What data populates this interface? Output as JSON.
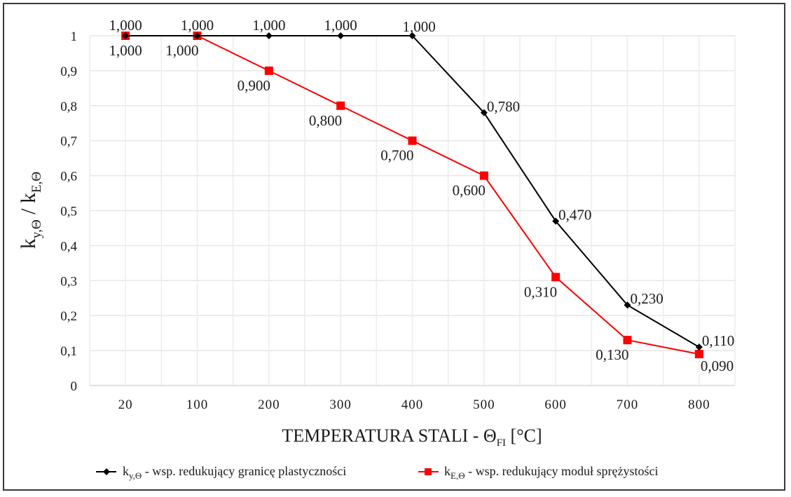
{
  "chart_data": {
    "type": "line",
    "title": "",
    "categories": [
      "20",
      "100",
      "200",
      "300",
      "400",
      "500",
      "600",
      "700",
      "800"
    ],
    "xlabel": {
      "main": "TEMPERATURA STALI - Θ",
      "sub": "FI",
      "suffix": " [°C]"
    },
    "ylabel": {
      "k1": "k",
      "sub1": "y,Θ",
      "sep": " / ",
      "k2": "k",
      "sub2": "E,Θ"
    },
    "ylim": [
      0,
      1
    ],
    "yticks": [
      0,
      0.1,
      0.2,
      0.3,
      0.4,
      0.5,
      0.6,
      0.7,
      0.8,
      0.9,
      1
    ],
    "ytick_labels": [
      "0",
      "0,1",
      "0,2",
      "0,3",
      "0,4",
      "0,5",
      "0,6",
      "0,7",
      "0,8",
      "0,9",
      "1"
    ],
    "grid": true,
    "legend_position": "bottom",
    "series": [
      {
        "name": "k_y,Θ - wsp. redukujący granicę plastyczności",
        "legend_main": "k",
        "legend_sub": "y,Θ",
        "legend_rest": " - wsp. redukujący granicę plastyczności",
        "color": "#000000",
        "marker": "diamond",
        "values": [
          1.0,
          1.0,
          1.0,
          1.0,
          1.0,
          0.78,
          0.47,
          0.23,
          0.11
        ],
        "labels": [
          "1,000",
          "1,000",
          "1,000",
          "1,000",
          "1,000",
          "0,780",
          "0,470",
          "0,230",
          "0,110"
        ],
        "label_positions": [
          "above",
          "above",
          "above",
          "above",
          "above-right",
          "right",
          "right",
          "right",
          "right"
        ]
      },
      {
        "name": "k_E,Θ - wsp. redukujący moduł sprężystości",
        "legend_main": "k",
        "legend_sub": "E,Θ",
        "legend_rest": " - wsp. redukujący moduł sprężystości",
        "color": "#ff0000",
        "marker": "square",
        "values": [
          1.0,
          1.0,
          0.9,
          0.8,
          0.7,
          0.6,
          0.31,
          0.13,
          0.09
        ],
        "labels": [
          "1,000",
          "1,000",
          "0,900",
          "0,800",
          "0,700",
          "0,600",
          "0,310",
          "0,130",
          "0,090"
        ],
        "label_positions": [
          "below",
          "below-left",
          "below-left",
          "below-left",
          "below-left",
          "below-left",
          "below-left",
          "below-left",
          "below-right"
        ]
      }
    ]
  }
}
